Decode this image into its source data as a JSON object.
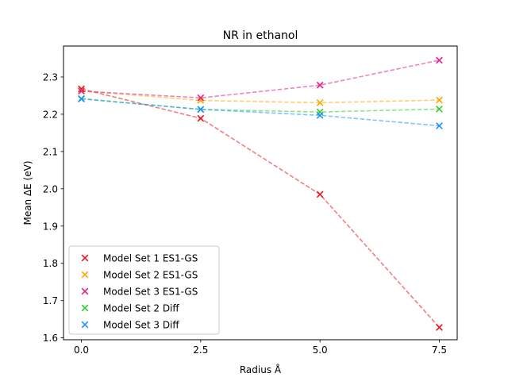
{
  "chart_data": {
    "type": "scatter",
    "title": "NR in ethanol",
    "xlabel": "Radius Å",
    "ylabel": "Mean ΔE (eV)",
    "x": [
      0.0,
      2.5,
      5.0,
      7.5
    ],
    "xticks": [
      "0.0",
      "2.5",
      "5.0",
      "7.5"
    ],
    "yticks": [
      "1.6",
      "1.7",
      "1.8",
      "1.9",
      "2.0",
      "2.1",
      "2.2",
      "2.3"
    ],
    "xlim": [
      -0.375,
      7.875
    ],
    "ylim": [
      1.595,
      2.383
    ],
    "legend_position": "lower-left",
    "grid": false,
    "series": [
      {
        "name": "Model Set 1 ES1-GS",
        "color": "#e8141c",
        "values": [
          2.268,
          2.189,
          1.985,
          1.628
        ]
      },
      {
        "name": "Model Set 2 ES1-GS",
        "color": "#ffa500",
        "values": [
          2.263,
          2.237,
          2.231,
          2.238
        ]
      },
      {
        "name": "Model Set 3 ES1-GS",
        "color": "#e0218a",
        "values": [
          2.262,
          2.244,
          2.278,
          2.345
        ]
      },
      {
        "name": "Model Set 2 Diff",
        "color": "#32cd32",
        "values": [
          2.242,
          2.213,
          2.206,
          2.214
        ]
      },
      {
        "name": "Model Set 3 Diff",
        "color": "#1e90ff",
        "values": [
          2.241,
          2.213,
          2.197,
          2.169
        ]
      }
    ]
  }
}
